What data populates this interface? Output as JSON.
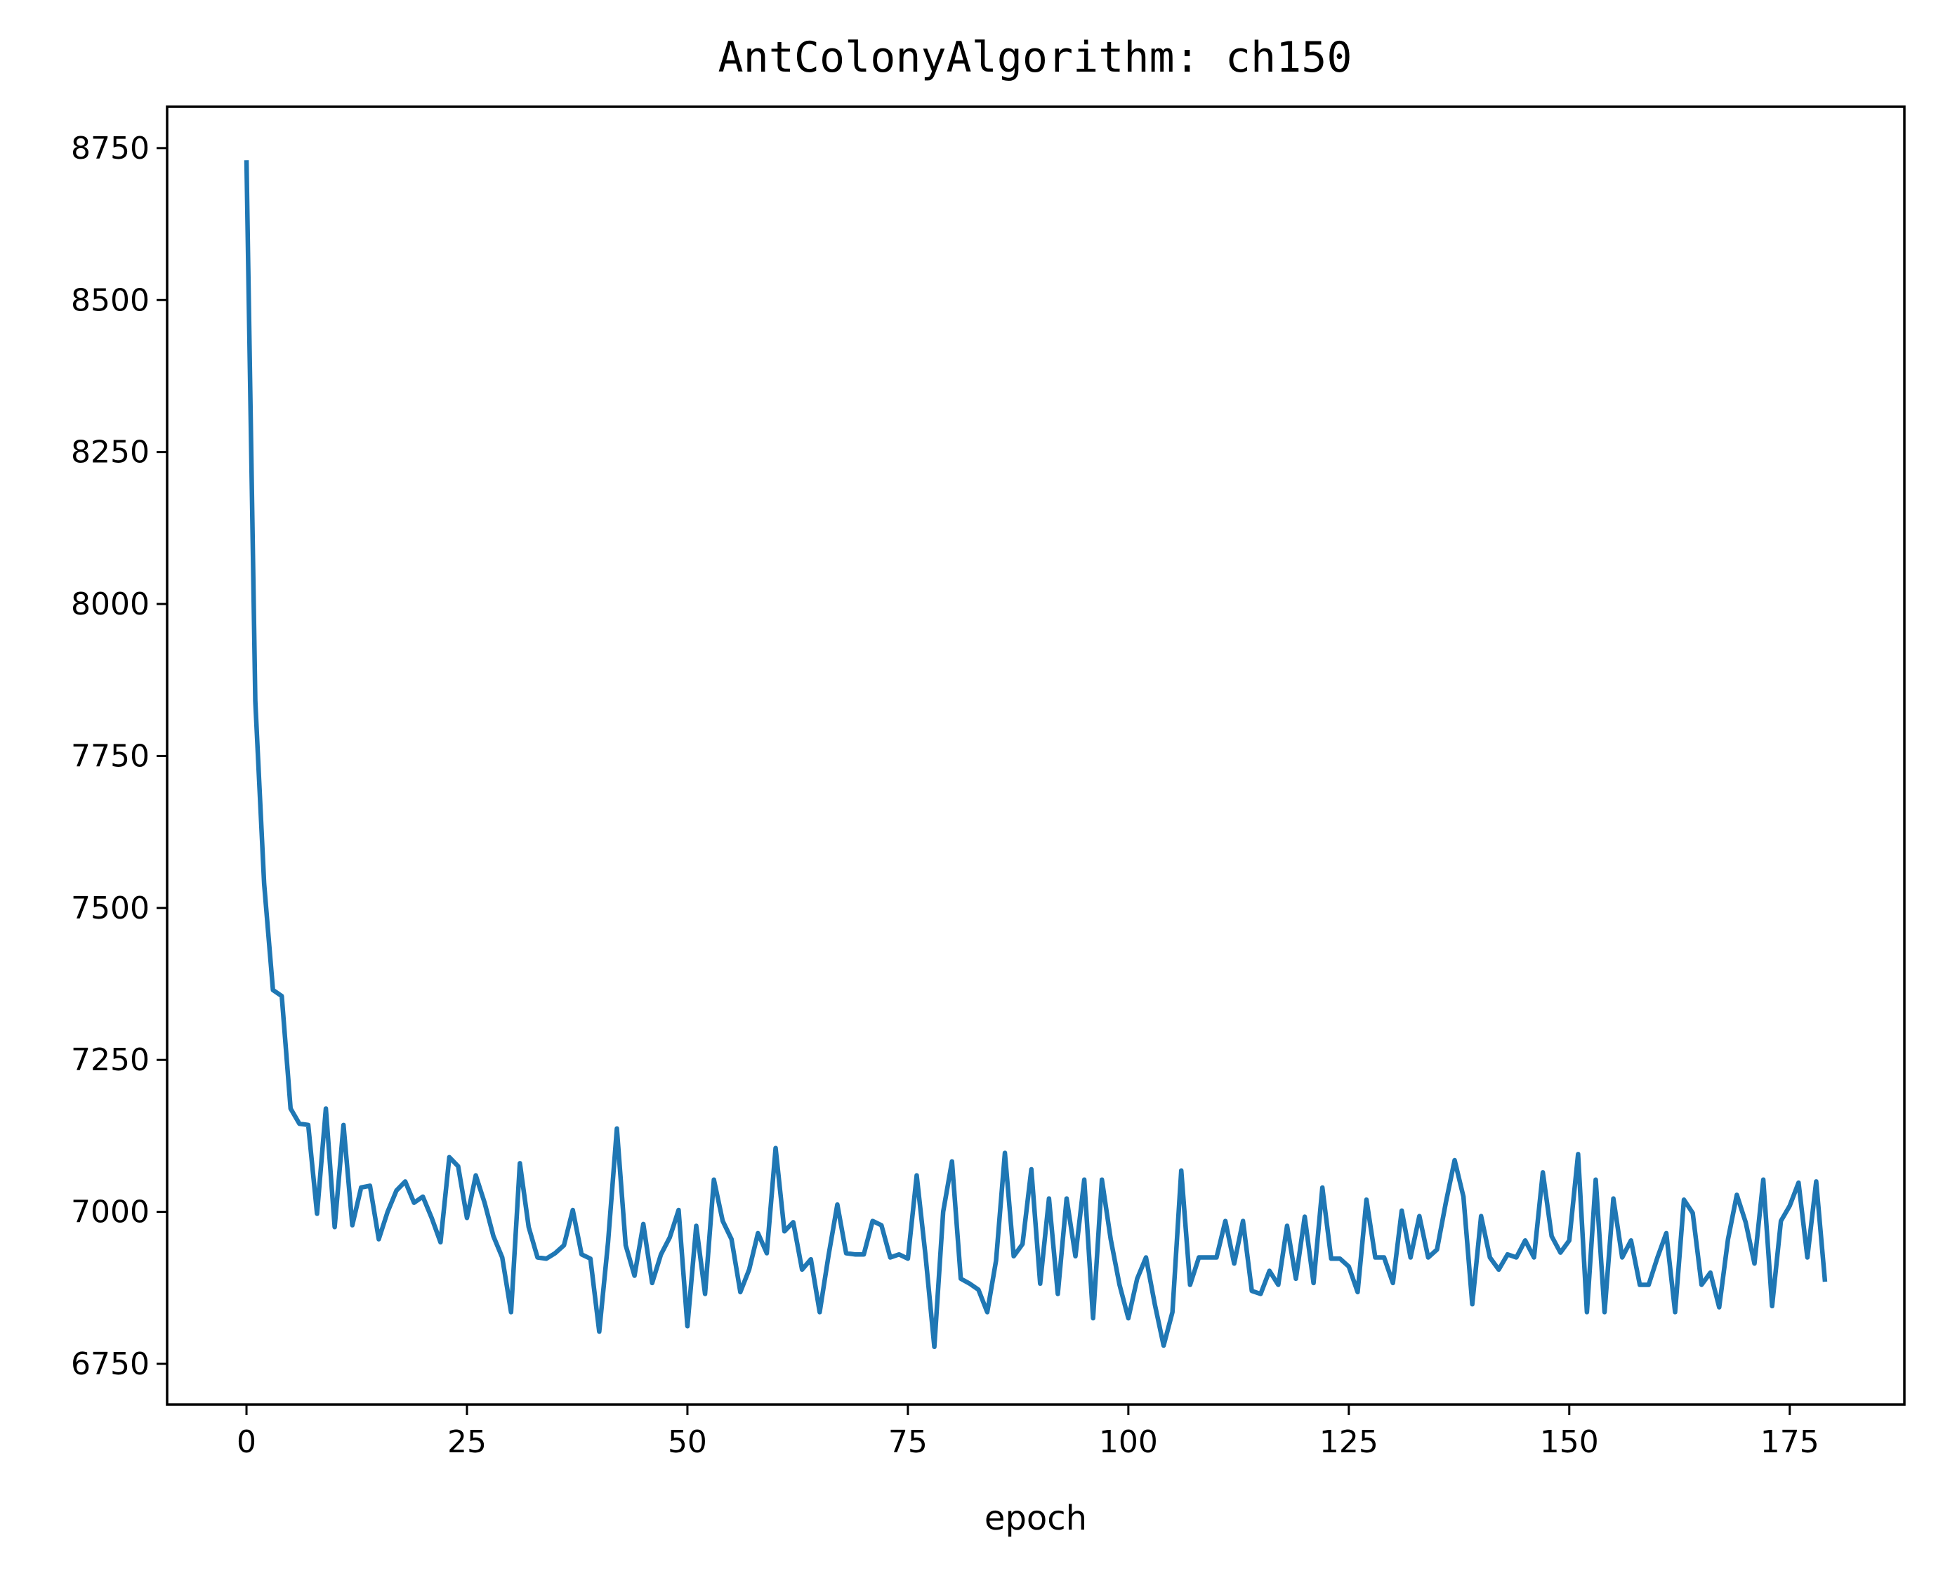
{
  "chart_data": {
    "type": "line",
    "title": "AntColonyAlgorithm: ch150",
    "xlabel": "epoch",
    "ylabel": "",
    "xlim": [
      -9,
      188
    ],
    "ylim": [
      6683,
      8818
    ],
    "xticks": [
      0,
      25,
      50,
      75,
      100,
      125,
      150,
      175
    ],
    "yticks": [
      6750,
      7000,
      7250,
      7500,
      7750,
      8000,
      8250,
      8500,
      8750
    ],
    "grid": false,
    "legend": "none",
    "line_color": "#1f77b4",
    "series": [
      {
        "values": [
          8730,
          7840,
          7540,
          7365,
          7355,
          7170,
          7145,
          7143,
          6997,
          7170,
          6975,
          7143,
          6978,
          7040,
          7043,
          6955,
          7000,
          7035,
          7050,
          7015,
          7025,
          6990,
          6950,
          7090,
          7075,
          6990,
          7060,
          7015,
          6960,
          6925,
          6835,
          7080,
          6975,
          6925,
          6923,
          6932,
          6945,
          7003,
          6930,
          6923,
          6803,
          6950,
          7137,
          6945,
          6895,
          6980,
          6883,
          6930,
          6958,
          7003,
          6812,
          6977,
          6865,
          7053,
          6985,
          6955,
          6868,
          6905,
          6965,
          6932,
          7105,
          6968,
          6983,
          6905,
          6922,
          6835,
          6928,
          7012,
          6932,
          6930,
          6930,
          6985,
          6978,
          6925,
          6930,
          6923,
          7060,
          6928,
          6778,
          7000,
          7083,
          6890,
          6882,
          6872,
          6835,
          6920,
          7097,
          6927,
          6947,
          7070,
          6882,
          7022,
          6865,
          7022,
          6927,
          7053,
          6825,
          7053,
          6955,
          6880,
          6825,
          6890,
          6925,
          6848,
          6780,
          6835,
          7068,
          6880,
          6925,
          6925,
          6925,
          6985,
          6915,
          6985,
          6870,
          6865,
          6903,
          6880,
          6977,
          6890,
          6992,
          6883,
          7040,
          6923,
          6923,
          6910,
          6868,
          7020,
          6925,
          6925,
          6883,
          7002,
          6925,
          6993,
          6925,
          6938,
          7015,
          7085,
          7025,
          6848,
          6993,
          6925,
          6905,
          6930,
          6925,
          6953,
          6925,
          7065,
          6960,
          6933,
          6953,
          7095,
          6835,
          7053,
          6835,
          7022,
          6925,
          6953,
          6880,
          6880,
          6925,
          6965,
          6835,
          7020,
          6998,
          6880,
          6900,
          6843,
          6955,
          7028,
          6983,
          6915,
          7053,
          6845,
          6985,
          7010,
          7048,
          6925,
          7050,
          6885
        ]
      }
    ]
  }
}
